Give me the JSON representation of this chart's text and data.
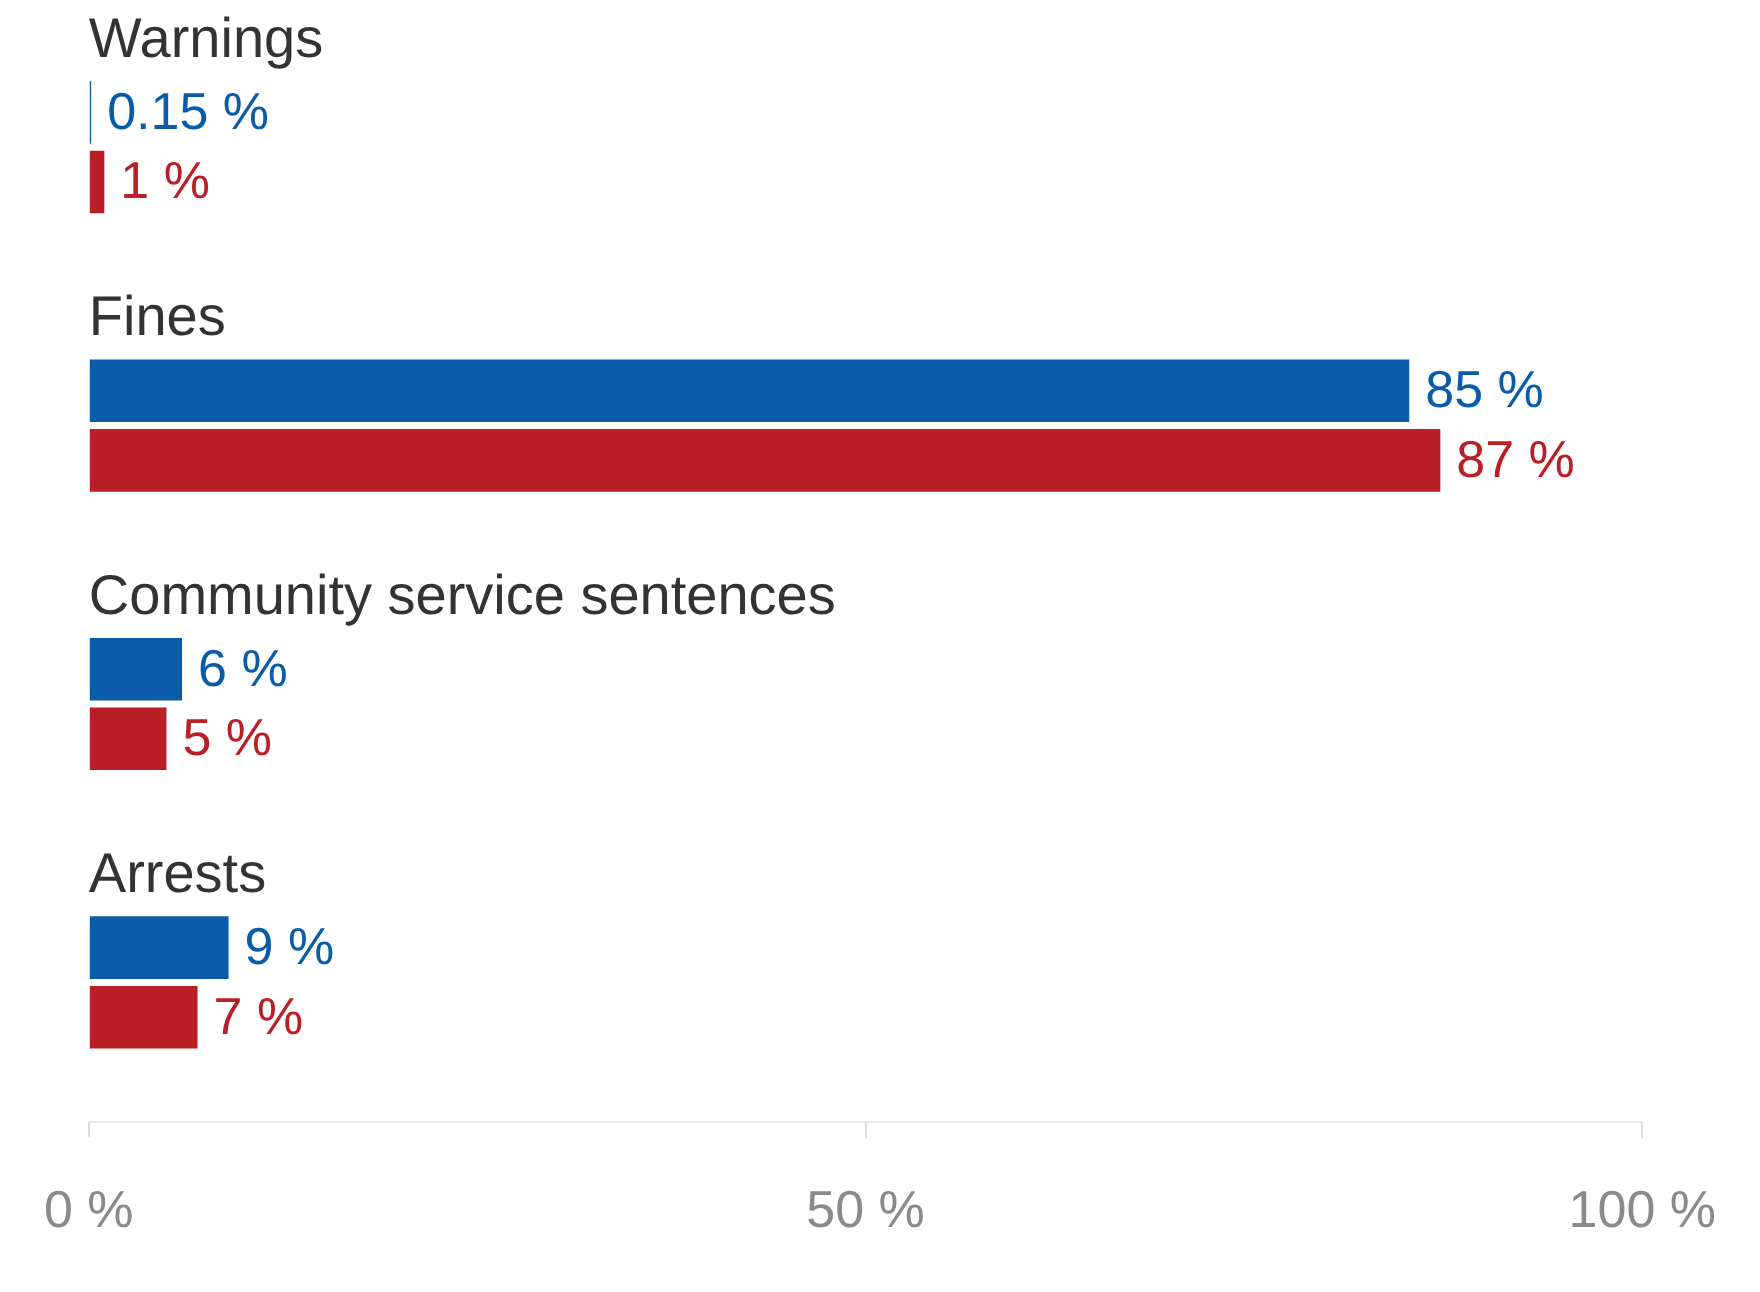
{
  "chart_data": {
    "type": "bar",
    "orientation": "horizontal",
    "categories": [
      "Warnings",
      "Fines",
      "Community service sentences",
      "Arrests"
    ],
    "series": [
      {
        "color": "#0a5ca8",
        "values": [
          0.15,
          85,
          6,
          9
        ],
        "value_labels": [
          "0.15 %",
          "85 %",
          "6 %",
          "9 %"
        ]
      },
      {
        "color": "#b81f27",
        "values": [
          1,
          87,
          5,
          7
        ],
        "value_labels": [
          "1 %",
          "87 %",
          "5 %",
          "7 %"
        ]
      }
    ],
    "xlim": [
      0,
      100
    ],
    "xticks": [
      {
        "value": 0,
        "label": "0 %"
      },
      {
        "value": 50,
        "label": "50 %"
      },
      {
        "value": 100,
        "label": "100 %"
      }
    ],
    "grid": false,
    "legend": false
  }
}
